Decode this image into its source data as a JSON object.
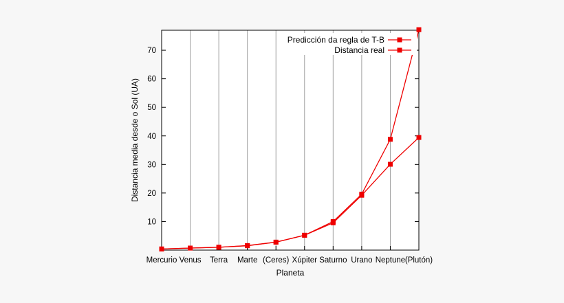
{
  "chart_data": {
    "type": "line",
    "title": "",
    "xlabel": "Planeta",
    "ylabel": "Distancia media desde o Sol (UA)",
    "categories": [
      "Mercurio",
      "Venus",
      "Terra",
      "Marte",
      "(Ceres)",
      "Xúpiter",
      "Saturno",
      "Urano",
      "Neptune",
      "(Plutón)"
    ],
    "ylim": [
      0,
      77
    ],
    "yticks": [
      10,
      20,
      30,
      40,
      50,
      60,
      70
    ],
    "grid": "vertical",
    "legend_position": "top-right",
    "series": [
      {
        "name": "Predicción da regla de T-B",
        "color": "#ee0000",
        "values": [
          0.4,
          0.7,
          1.0,
          1.6,
          2.8,
          5.2,
          10.0,
          19.6,
          38.8,
          77.2
        ]
      },
      {
        "name": "Distancia real",
        "color": "#ee0000",
        "values": [
          0.39,
          0.72,
          1.0,
          1.52,
          2.77,
          5.2,
          9.54,
          19.2,
          30.06,
          39.44
        ]
      }
    ],
    "colors": {
      "plot_background": "#ffffff",
      "page_background": "#f7f7f7",
      "grid": "#a0a0a0",
      "axis": "#000000"
    }
  }
}
